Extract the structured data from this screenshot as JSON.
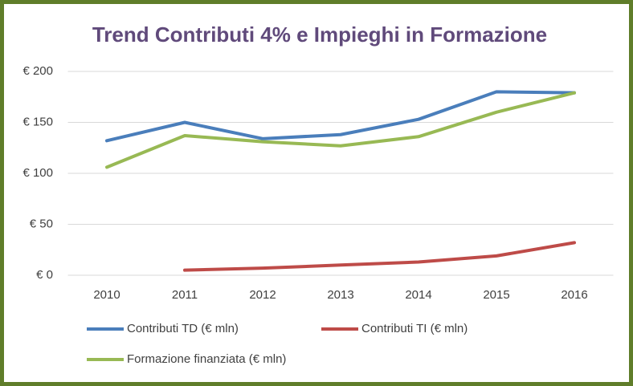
{
  "chart_data": {
    "type": "line",
    "title": "Trend Contributi 4% e  Impieghi in Formazione",
    "categories": [
      "2010",
      "2011",
      "2012",
      "2013",
      "2014",
      "2015",
      "2016"
    ],
    "series": [
      {
        "name": "Contributi TD (€ mln)",
        "color": "#4a7ebb",
        "values": [
          132,
          150,
          134,
          138,
          153,
          180,
          179
        ]
      },
      {
        "name": "Contributi TI  (€ mln)",
        "color": "#be4b48",
        "values": [
          null,
          5,
          7,
          10,
          13,
          19,
          32
        ]
      },
      {
        "name": "Formazione finanziata (€ mln)",
        "color": "#98b954",
        "values": [
          106,
          137,
          131,
          127,
          136,
          160,
          179
        ]
      }
    ],
    "ylim": [
      0,
      200
    ],
    "yticks": [
      {
        "value": 0,
        "label": "€ 0"
      },
      {
        "value": 50,
        "label": "€ 50"
      },
      {
        "value": 100,
        "label": "€ 100"
      },
      {
        "value": 150,
        "label": "€ 150"
      },
      {
        "value": 200,
        "label": "€ 200"
      }
    ],
    "grid": true
  }
}
